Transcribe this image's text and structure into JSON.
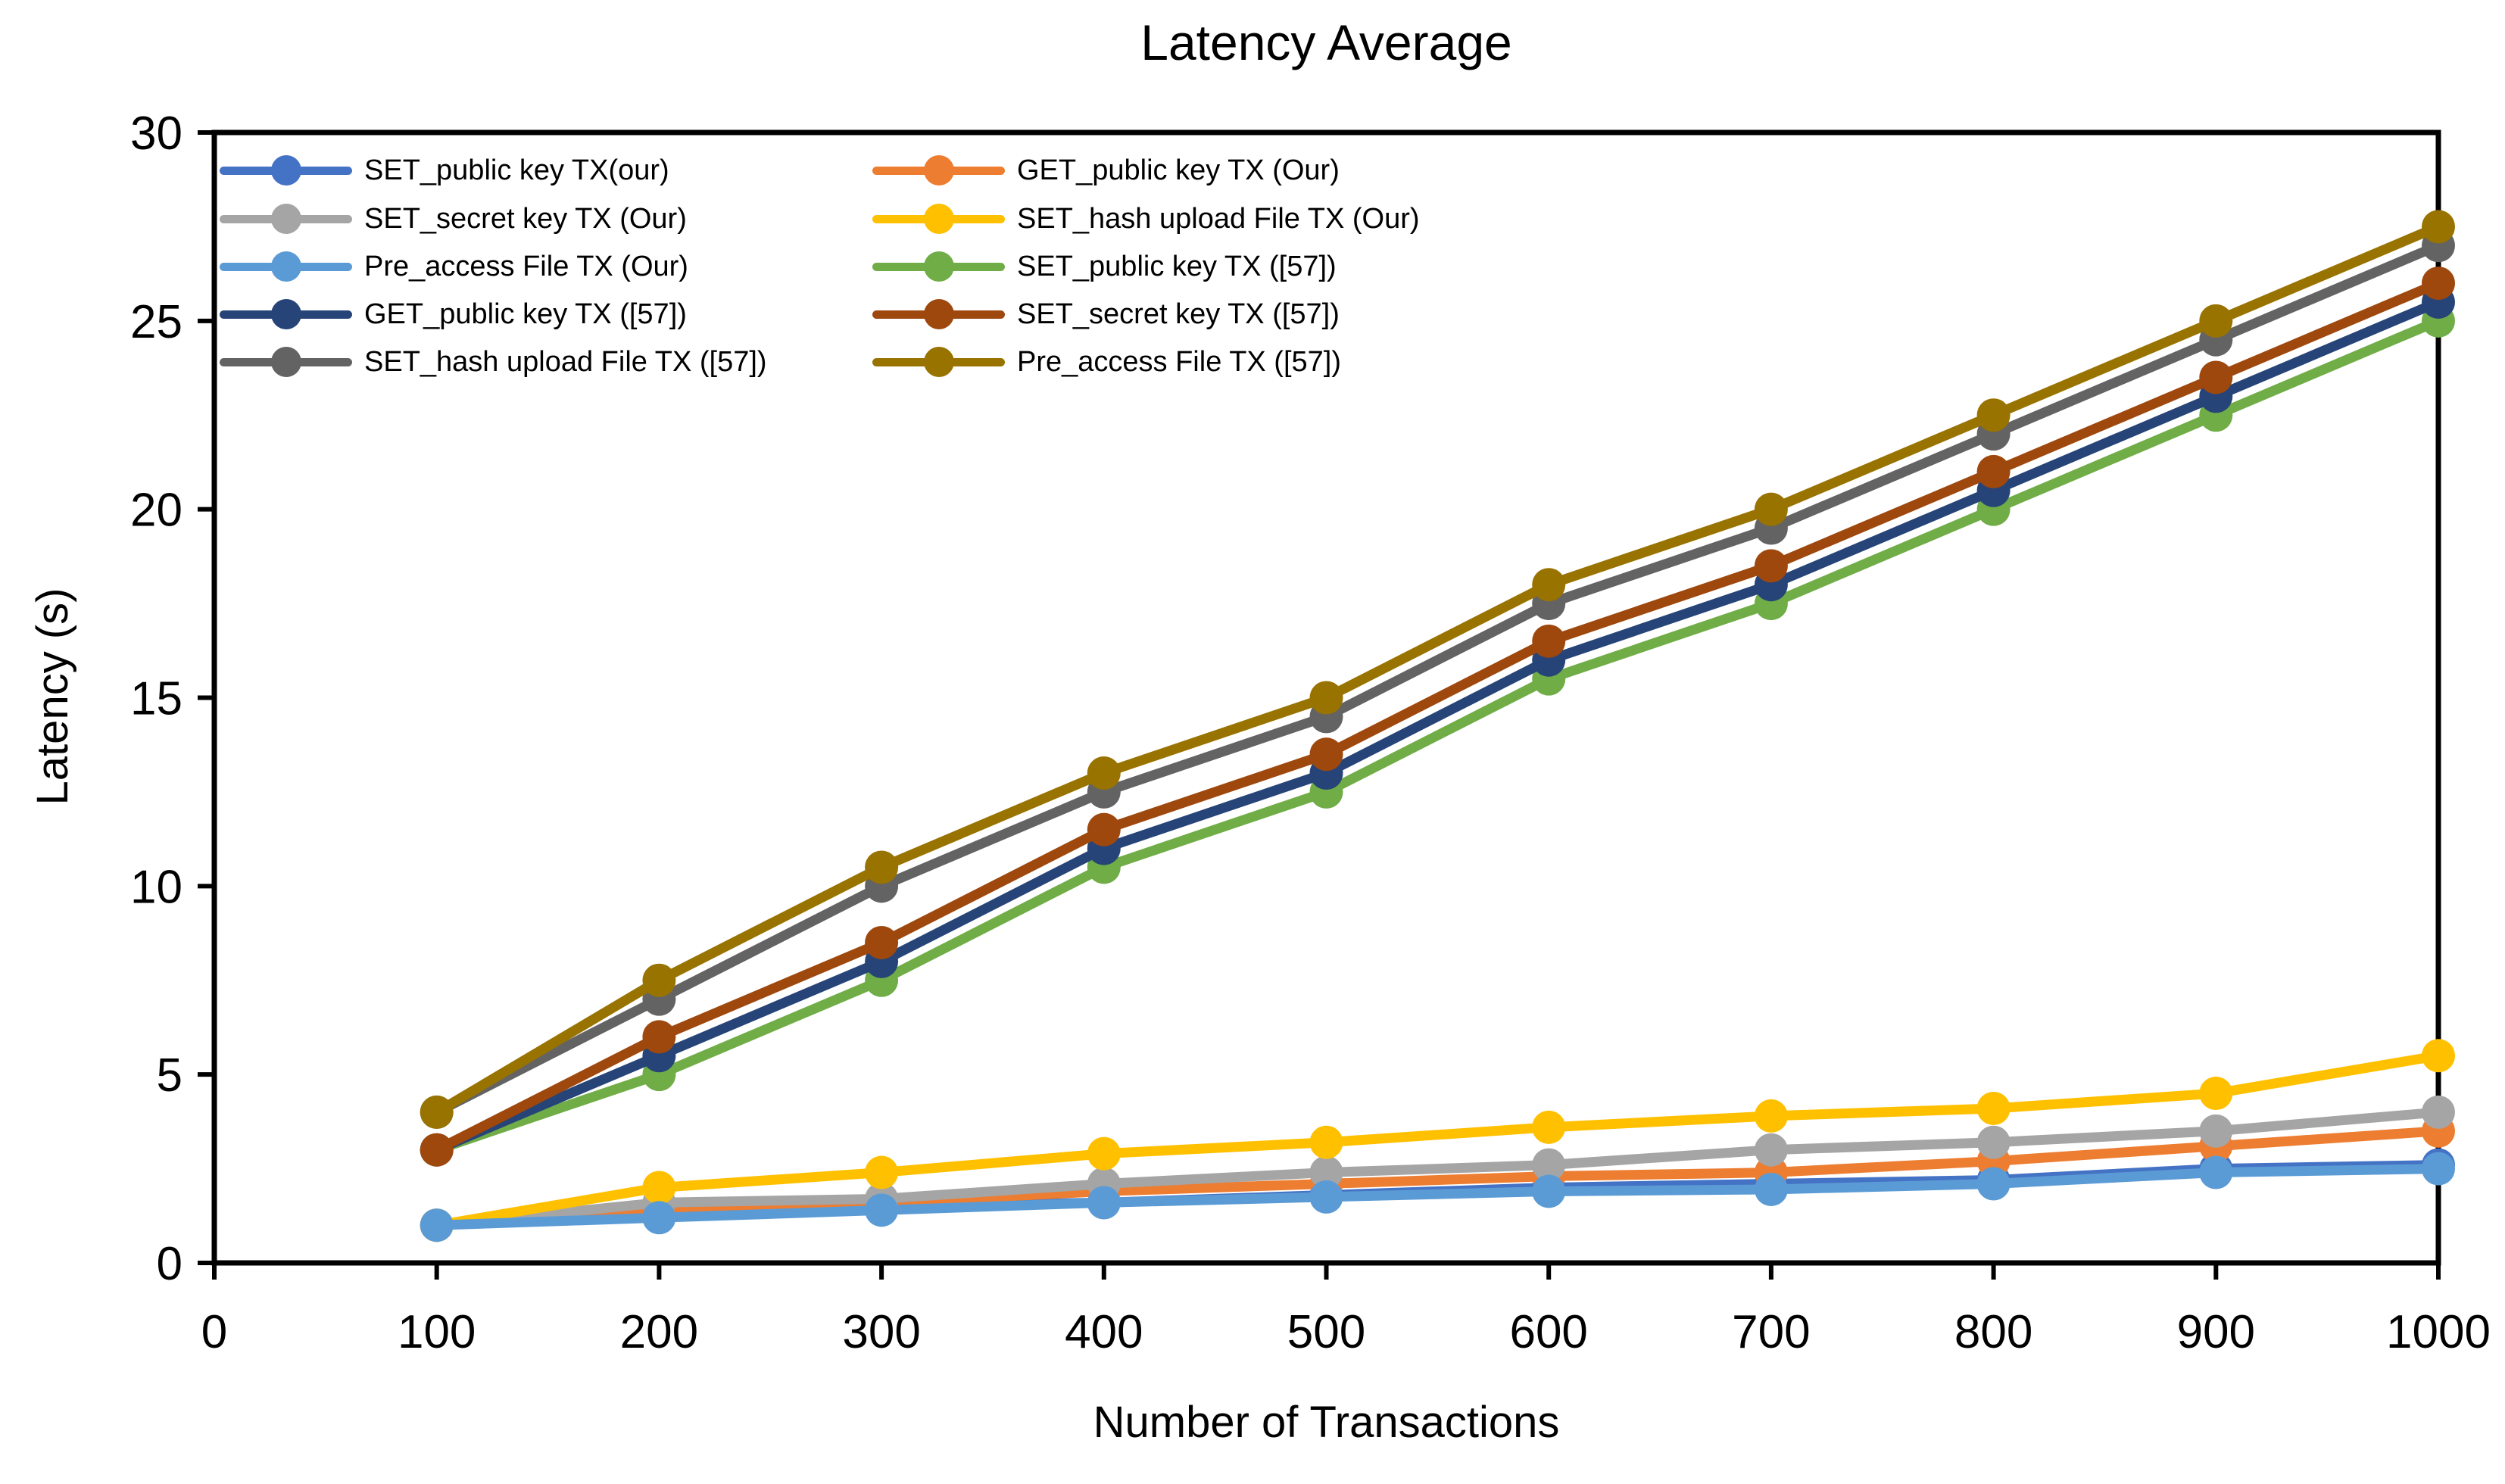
{
  "title": "Latency Average",
  "axes": {
    "x_title": "Number of Transactions",
    "y_title": "Latency (s)"
  },
  "colors": {
    "background": "#FFFFFF",
    "axis_line": "#000000",
    "text": "#000000"
  },
  "chart_data": {
    "type": "line",
    "title": "Latency Average",
    "xlabel": "Number of Transactions",
    "ylabel": "Latency (s)",
    "x": [
      100,
      200,
      300,
      400,
      500,
      600,
      700,
      800,
      900,
      1000
    ],
    "xlim": [
      0,
      1000
    ],
    "ylim": [
      0,
      30
    ],
    "x_ticks": [
      0,
      100,
      200,
      300,
      400,
      500,
      600,
      700,
      800,
      900,
      1000
    ],
    "y_ticks": [
      0,
      5,
      10,
      15,
      20,
      25,
      30
    ],
    "grid": false,
    "legend_position": "inside top-left, two columns",
    "marker": "circle",
    "series": [
      {
        "name": "SET_public key TX(our)",
        "color": "#4472C4",
        "values": [
          1.0,
          1.3,
          1.5,
          1.6,
          1.8,
          2.0,
          2.1,
          2.2,
          2.5,
          2.6
        ]
      },
      {
        "name": "GET_public key TX (Our)",
        "color": "#ED7D31",
        "values": [
          1.0,
          1.4,
          1.6,
          1.9,
          2.1,
          2.3,
          2.4,
          2.7,
          3.1,
          3.5
        ]
      },
      {
        "name": "SET_secret key TX (Our)",
        "color": "#A5A5A5",
        "values": [
          1.0,
          1.6,
          1.7,
          2.1,
          2.4,
          2.6,
          3.0,
          3.2,
          3.5,
          4.0
        ]
      },
      {
        "name": "SET_hash upload File TX (Our)",
        "color": "#FFC000",
        "values": [
          1.0,
          2.0,
          2.4,
          2.9,
          3.2,
          3.6,
          3.9,
          4.1,
          4.5,
          5.5
        ]
      },
      {
        "name": "Pre_access File TX (Our)",
        "color": "#5B9BD5",
        "values": [
          1.0,
          1.2,
          1.4,
          1.6,
          1.75,
          1.9,
          1.95,
          2.1,
          2.4,
          2.5
        ]
      },
      {
        "name": "SET_public key TX ([57])",
        "color": "#70AD47",
        "values": [
          3.0,
          5.0,
          7.5,
          10.5,
          12.5,
          15.5,
          17.5,
          20.0,
          22.5,
          25.0
        ]
      },
      {
        "name": "GET_public key TX ([57])",
        "color": "#264478",
        "values": [
          3.0,
          5.5,
          8.0,
          11.0,
          13.0,
          16.0,
          18.0,
          20.5,
          23.0,
          25.5
        ]
      },
      {
        "name": "SET_secret key TX ([57])",
        "color": "#9E480E",
        "values": [
          3.0,
          6.0,
          8.5,
          11.5,
          13.5,
          16.5,
          18.5,
          21.0,
          23.5,
          26.0
        ]
      },
      {
        "name": "SET_hash upload File TX ([57])",
        "color": "#636363",
        "values": [
          4.0,
          7.0,
          10.0,
          12.5,
          14.5,
          17.5,
          19.5,
          22.0,
          24.5,
          27.0
        ]
      },
      {
        "name": "Pre_access File TX ([57])",
        "color": "#997300",
        "values": [
          4.0,
          7.5,
          10.5,
          13.0,
          15.0,
          18.0,
          20.0,
          22.5,
          25.0,
          27.5
        ]
      }
    ],
    "legend_columns": [
      [
        0,
        2,
        4,
        6,
        8
      ],
      [
        1,
        3,
        5,
        7,
        9
      ]
    ]
  }
}
